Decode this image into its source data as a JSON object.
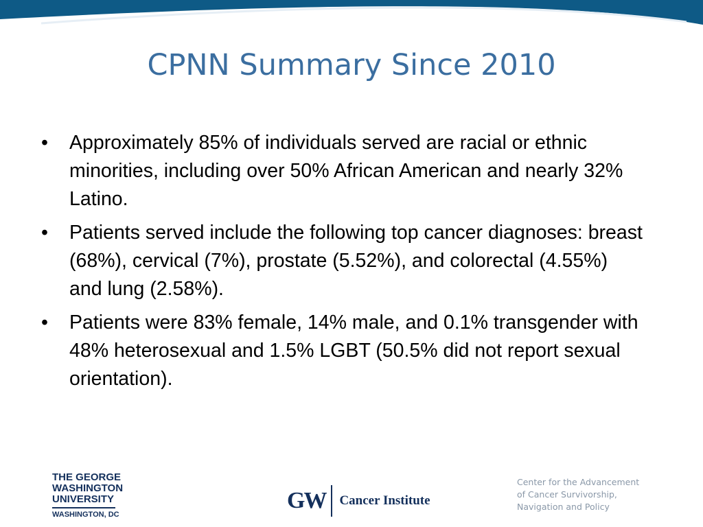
{
  "slide": {
    "title": "CPNN Summary Since 2010",
    "bullet_glyph": "•",
    "bullets": [
      {
        "text": "Approximately 85% of individuals served are racial or ethnic minorities, including over 50% African American and nearly 32% Latino."
      },
      {
        "text": "Patients served include the following top cancer diagnoses: breast (68%), cervical (7%), prostate (5.52%), and colorectal (4.55%) and lung (2.58%)."
      },
      {
        "text": "Patients were 83% female, 14% male, and 0.1% transgender with 48% heterosexual and 1.5% LGBT (50.5% did not report sexual orientation)."
      }
    ]
  },
  "footer": {
    "gwu_logo": {
      "lines": [
        "THE GEORGE",
        "WASHINGTON",
        "UNIVERSITY"
      ],
      "sub": "WASHINGTON, DC"
    },
    "cancer_institute_logo": {
      "mark": "GW",
      "name": "Cancer Institute"
    },
    "center_lines": [
      "Center for the Advancement",
      "of Cancer Survivorship,",
      "Navigation and Policy"
    ]
  },
  "colors": {
    "band": "#0e5a86",
    "title": "#3b6ea0",
    "logo": "#14305c",
    "footer_text": "#8a98a8"
  }
}
